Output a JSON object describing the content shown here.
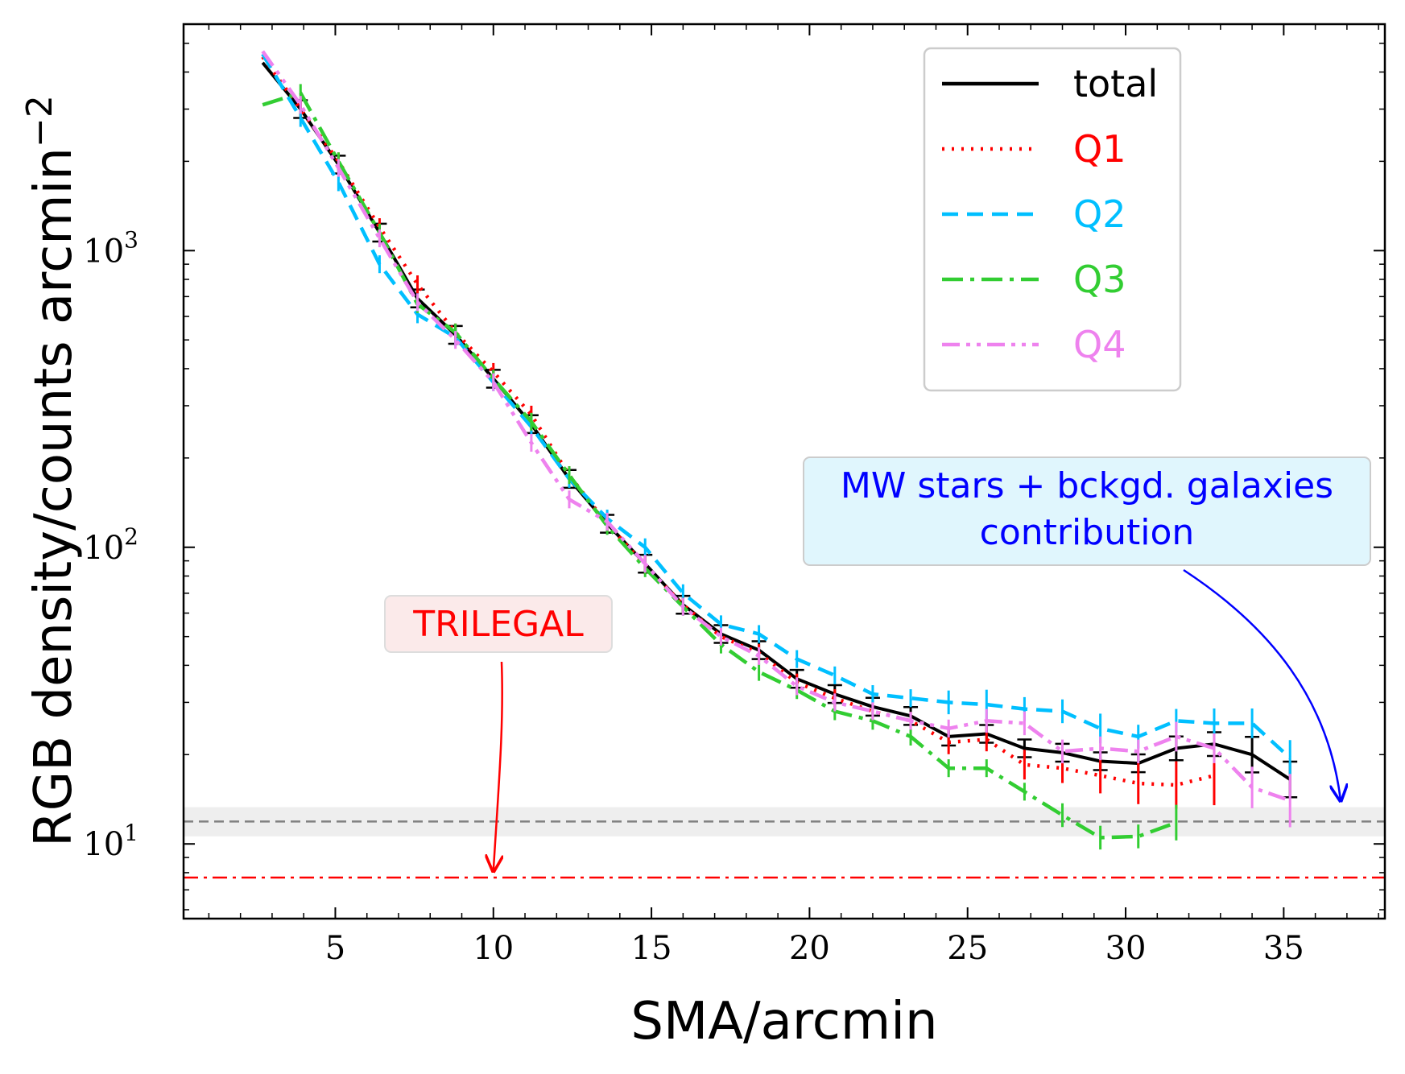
{
  "chart_data": {
    "type": "line",
    "xlabel": "SMA/arcmin",
    "ylabel": "RGB density/counts arcmin",
    "ylabel_exponent": "−2",
    "xlim": [
      0.2,
      38.2
    ],
    "ylim": [
      5.6,
      5800
    ],
    "yscale": "log",
    "x_ticks": [
      5,
      10,
      15,
      20,
      25,
      30,
      35
    ],
    "x_tick_labels": [
      "5",
      "10",
      "15",
      "20",
      "25",
      "30",
      "35"
    ],
    "y_ticks": [
      10,
      100,
      1000
    ],
    "y_tick_labels": [
      {
        "base": "10",
        "exp": "1"
      },
      {
        "base": "10",
        "exp": "2"
      },
      {
        "base": "10",
        "exp": "3"
      }
    ],
    "series": [
      {
        "name": "total",
        "color": "#000000",
        "dash": "solid",
        "x": [
          2.7,
          3.9,
          5.1,
          6.4,
          7.6,
          8.8,
          10.0,
          11.2,
          12.4,
          13.6,
          14.8,
          16.0,
          17.2,
          18.4,
          19.6,
          20.8,
          22.0,
          23.2,
          24.4,
          25.6,
          26.8,
          28.0,
          29.2,
          30.4,
          31.6,
          32.8,
          34.0,
          35.2
        ],
        "y": [
          4300,
          3000,
          1950,
          1150,
          690,
          520,
          370,
          260,
          170,
          120,
          88,
          64,
          51,
          45,
          36,
          32,
          29,
          27,
          23,
          23.5,
          21,
          20.3,
          19,
          18.7,
          21,
          21.7,
          20,
          16.5
        ],
        "err": [
          0,
          0.03,
          0.03,
          0.03,
          0.03,
          0.03,
          0.03,
          0.03,
          0.03,
          0.03,
          0.03,
          0.03,
          0.03,
          0.03,
          0.03,
          0.03,
          0.03,
          0.03,
          0.03,
          0.03,
          0.03,
          0.03,
          0.03,
          0.03,
          0.04,
          0.04,
          0.06,
          0.06
        ]
      },
      {
        "name": "Q1",
        "color": "#ff0000",
        "dash": "dotted",
        "x": [
          2.7,
          3.9,
          5.1,
          6.4,
          7.6,
          8.8,
          10.0,
          11.2,
          12.4,
          13.6,
          14.8,
          16.0,
          17.2,
          18.4,
          19.6,
          20.8,
          22.0,
          23.2,
          24.4,
          25.6,
          26.8,
          28.0,
          29.2,
          30.4,
          31.6,
          32.8
        ],
        "y": [
          4500,
          3000,
          2000,
          1200,
          770,
          530,
          390,
          280,
          175,
          120,
          87,
          64,
          50,
          44,
          35,
          31,
          28,
          26,
          22,
          22.5,
          18.5,
          18,
          17,
          16,
          15.8,
          17
        ],
        "err": [
          0,
          0.03,
          0.03,
          0.03,
          0.03,
          0.03,
          0.03,
          0.03,
          0.03,
          0.03,
          0.03,
          0.03,
          0.03,
          0.03,
          0.03,
          0.03,
          0.03,
          0.03,
          0.04,
          0.04,
          0.05,
          0.05,
          0.06,
          0.07,
          0.08,
          0.1
        ]
      },
      {
        "name": "Q2",
        "color": "#00bfff",
        "dash": "dashed",
        "x": [
          2.7,
          3.9,
          5.1,
          6.4,
          7.6,
          8.8,
          10.0,
          11.2,
          12.4,
          13.6,
          14.8,
          16.0,
          17.2,
          18.4,
          19.6,
          20.8,
          22.0,
          23.2,
          24.4,
          25.6,
          26.8,
          28.0,
          29.2,
          30.4,
          31.6,
          32.8,
          34.0,
          35.2
        ],
        "y": [
          4600,
          2800,
          1700,
          900,
          610,
          510,
          360,
          255,
          170,
          125,
          100,
          70,
          55,
          51,
          42,
          37,
          32,
          31,
          30,
          29.5,
          28.5,
          28,
          24.5,
          23,
          26,
          25.5,
          25.5,
          19.5
        ],
        "err": [
          0,
          0.03,
          0.03,
          0.03,
          0.03,
          0.03,
          0.03,
          0.03,
          0.03,
          0.03,
          0.03,
          0.03,
          0.03,
          0.03,
          0.03,
          0.03,
          0.03,
          0.03,
          0.04,
          0.05,
          0.04,
          0.04,
          0.05,
          0.04,
          0.04,
          0.05,
          0.05,
          0.06
        ]
      },
      {
        "name": "Q3",
        "color": "#32cd32",
        "dash": "dashdot",
        "x": [
          2.7,
          3.9,
          5.1,
          6.4,
          7.6,
          8.8,
          10.0,
          11.2,
          12.4,
          13.6,
          14.8,
          16.0,
          17.2,
          18.4,
          19.6,
          20.8,
          22.0,
          23.2,
          24.4,
          25.6,
          26.8,
          28.0,
          29.2,
          30.4,
          31.6
        ],
        "y": [
          3100,
          3400,
          2000,
          1150,
          660,
          530,
          370,
          265,
          175,
          118,
          85,
          63,
          47,
          38,
          33,
          28,
          26,
          23,
          18,
          18,
          15,
          12.5,
          10.5,
          10.6,
          11.8
        ],
        "err": [
          0,
          0.03,
          0.03,
          0.03,
          0.03,
          0.03,
          0.03,
          0.03,
          0.03,
          0.03,
          0.03,
          0.03,
          0.03,
          0.03,
          0.03,
          0.03,
          0.03,
          0.03,
          0.03,
          0.03,
          0.03,
          0.04,
          0.04,
          0.04,
          0.06
        ]
      },
      {
        "name": "Q4",
        "color": "#ee82ee",
        "dash": "dashdotdot",
        "x": [
          2.7,
          3.9,
          5.1,
          6.4,
          7.6,
          8.8,
          10.0,
          11.2,
          12.4,
          13.6,
          14.8,
          16.0,
          17.2,
          18.4,
          19.6,
          20.8,
          22.0,
          23.2,
          24.4,
          25.6,
          26.8,
          28.0,
          29.2,
          30.4,
          31.6,
          32.8,
          34.0,
          35.2
        ],
        "y": [
          4700,
          3100,
          1900,
          1100,
          670,
          500,
          360,
          225,
          145,
          122,
          88,
          63,
          50,
          43,
          34,
          30,
          28,
          26,
          24.5,
          26,
          25.5,
          20.5,
          21,
          20.5,
          23,
          21,
          15.5,
          14
        ],
        "err": [
          0,
          0.03,
          0.03,
          0.03,
          0.03,
          0.03,
          0.03,
          0.03,
          0.03,
          0.03,
          0.03,
          0.03,
          0.03,
          0.03,
          0.03,
          0.03,
          0.03,
          0.03,
          0.03,
          0.04,
          0.04,
          0.04,
          0.04,
          0.04,
          0.05,
          0.05,
          0.07,
          0.09
        ]
      }
    ],
    "reference_lines": [
      {
        "name": "background-level",
        "y": 11.9,
        "color": "#808080",
        "dash": "dashed",
        "band": [
          10.6,
          13.3
        ]
      },
      {
        "name": "trilegal-level",
        "y": 7.7,
        "color": "#ff0000",
        "dash": "dashdot"
      }
    ],
    "legend": {
      "position": "top-right",
      "entries": [
        "total",
        "Q1",
        "Q2",
        "Q3",
        "Q4"
      ]
    },
    "annotations": [
      {
        "name": "trilegal",
        "line1": "TRILEGAL",
        "line2": "",
        "text_color": "#ff0000",
        "box_color": "#fbeaea",
        "arrow_color": "#ff0000",
        "arrow_to": [
          10.0,
          8.1
        ]
      },
      {
        "name": "mw-contribution",
        "line1": "MW stars + bckgd. galaxies",
        "line2": "contribution",
        "text_color": "#0000ff",
        "box_color": "#e0f6fd",
        "arrow_color": "#0000ff",
        "arrow_to": [
          36.8,
          14.0
        ]
      }
    ]
  }
}
